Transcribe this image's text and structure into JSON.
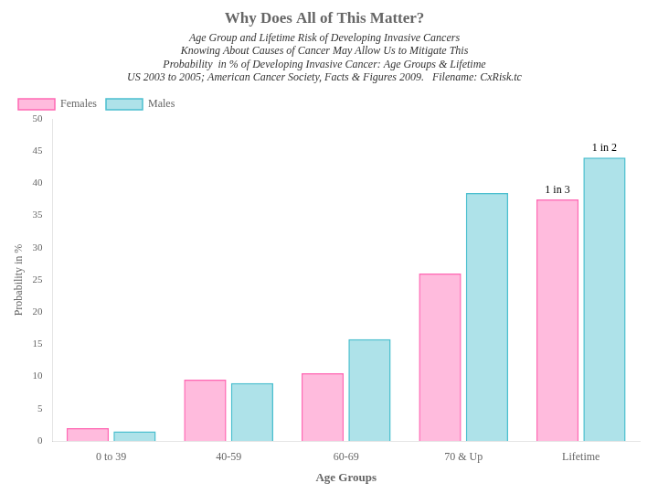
{
  "chart_data": {
    "type": "bar",
    "title": "Why Does All of This Matter?",
    "subtitle": [
      "Age Group and Lifetime Risk of Developing Invasive Cancers",
      "Knowing About Causes of Cancer May Allow Us to Mitigate This",
      "Probability  in % of Developing Invasive Cancer: Age Groups & Lifetime",
      "US 2003 to 2005; American Cancer Society, Facts & Figures 2009.   Filename: CxRisk.tc"
    ],
    "categories": [
      "0 to 39",
      "40-59",
      "60-69",
      "70 & Up",
      "Lifetime"
    ],
    "series": [
      {
        "name": "Females",
        "color": "#FF69B4",
        "values": [
          2.0,
          9.5,
          10.5,
          26.0,
          37.5
        ]
      },
      {
        "name": "Males",
        "color": "#4BBFCF",
        "values": [
          1.5,
          9.0,
          15.8,
          38.5,
          44.0
        ]
      }
    ],
    "xlabel": "Age Groups",
    "ylabel": "Probability in %",
    "ylim": [
      0,
      50
    ],
    "yticks": [
      0,
      5,
      10,
      15,
      20,
      25,
      30,
      35,
      40,
      45,
      50
    ],
    "grid": false,
    "legend": "upper left",
    "annotations": [
      {
        "text": "1 in 3",
        "category": "Lifetime",
        "series": "Females"
      },
      {
        "text": "1 in 2",
        "category": "Lifetime",
        "series": "Males"
      }
    ]
  }
}
